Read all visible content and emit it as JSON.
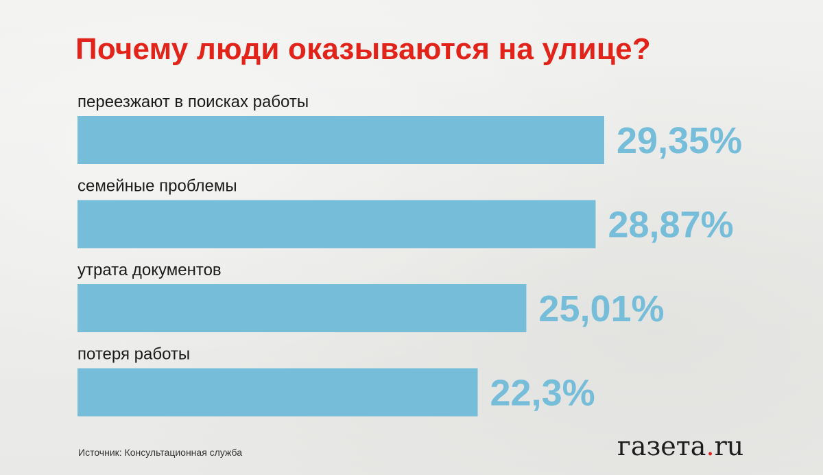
{
  "title": "Почему люди оказываются на улице?",
  "chart_data": {
    "type": "bar",
    "orientation": "horizontal",
    "categories": [
      "переезжают в поисках работы",
      "семейные проблемы",
      "утрата документов",
      "потеря работы"
    ],
    "values": [
      29.35,
      28.87,
      25.01,
      22.3
    ],
    "value_labels": [
      "29,35%",
      "28,87%",
      "25,01%",
      "22,3%"
    ],
    "unit": "%",
    "xlim": [
      0,
      29.35
    ],
    "grid": false,
    "legend": "none",
    "bar_color": "#76bdd9",
    "label_color": "#76bdd9"
  },
  "source": "Источник: Консультационная служба",
  "logo": {
    "left": "газета",
    "dot": ".",
    "right": "ru"
  },
  "colors": {
    "title": "#e2231a",
    "accent": "#e2231a",
    "background": "#ededeb"
  }
}
